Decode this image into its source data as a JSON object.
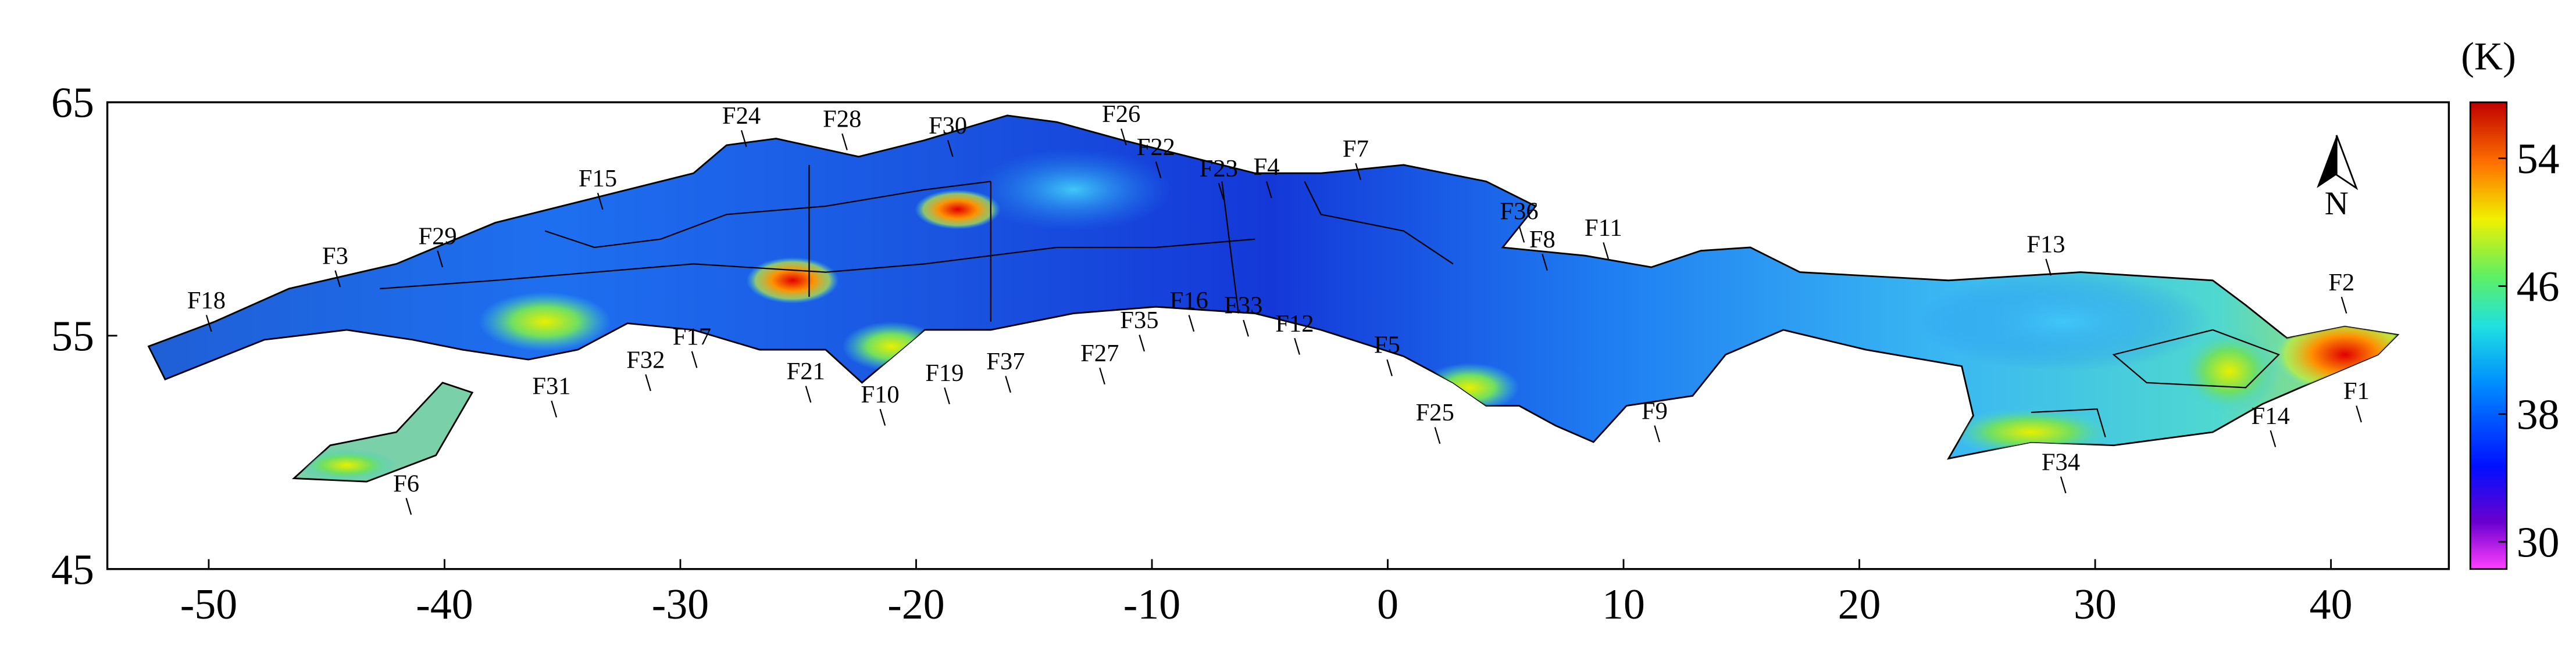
{
  "chart_data": {
    "type": "map",
    "xlim": [
      -54.3,
      45
    ],
    "ylim": [
      45,
      65
    ],
    "xticks": [
      -50,
      -40,
      -30,
      -20,
      -10,
      0,
      10,
      20,
      30,
      40
    ],
    "yticks": [
      45,
      55,
      65
    ],
    "colorbar_label": "(K)",
    "clim": [
      28.3,
      57.5
    ],
    "cticks": [
      30,
      38,
      46,
      54
    ],
    "north_label": "N",
    "annotations": [
      "F18",
      "F3",
      "F29",
      "F15",
      "F24",
      "F28",
      "F30",
      "F26",
      "F22",
      "F23",
      "F4",
      "F7",
      "F36",
      "F8",
      "F11",
      "F13",
      "F2",
      "F1",
      "F14",
      "F34",
      "F9",
      "F25",
      "F5",
      "F12",
      "F33",
      "F16",
      "F35",
      "F27",
      "F37",
      "F19",
      "F10",
      "F21",
      "F32",
      "F17",
      "F31",
      "F6"
    ]
  }
}
